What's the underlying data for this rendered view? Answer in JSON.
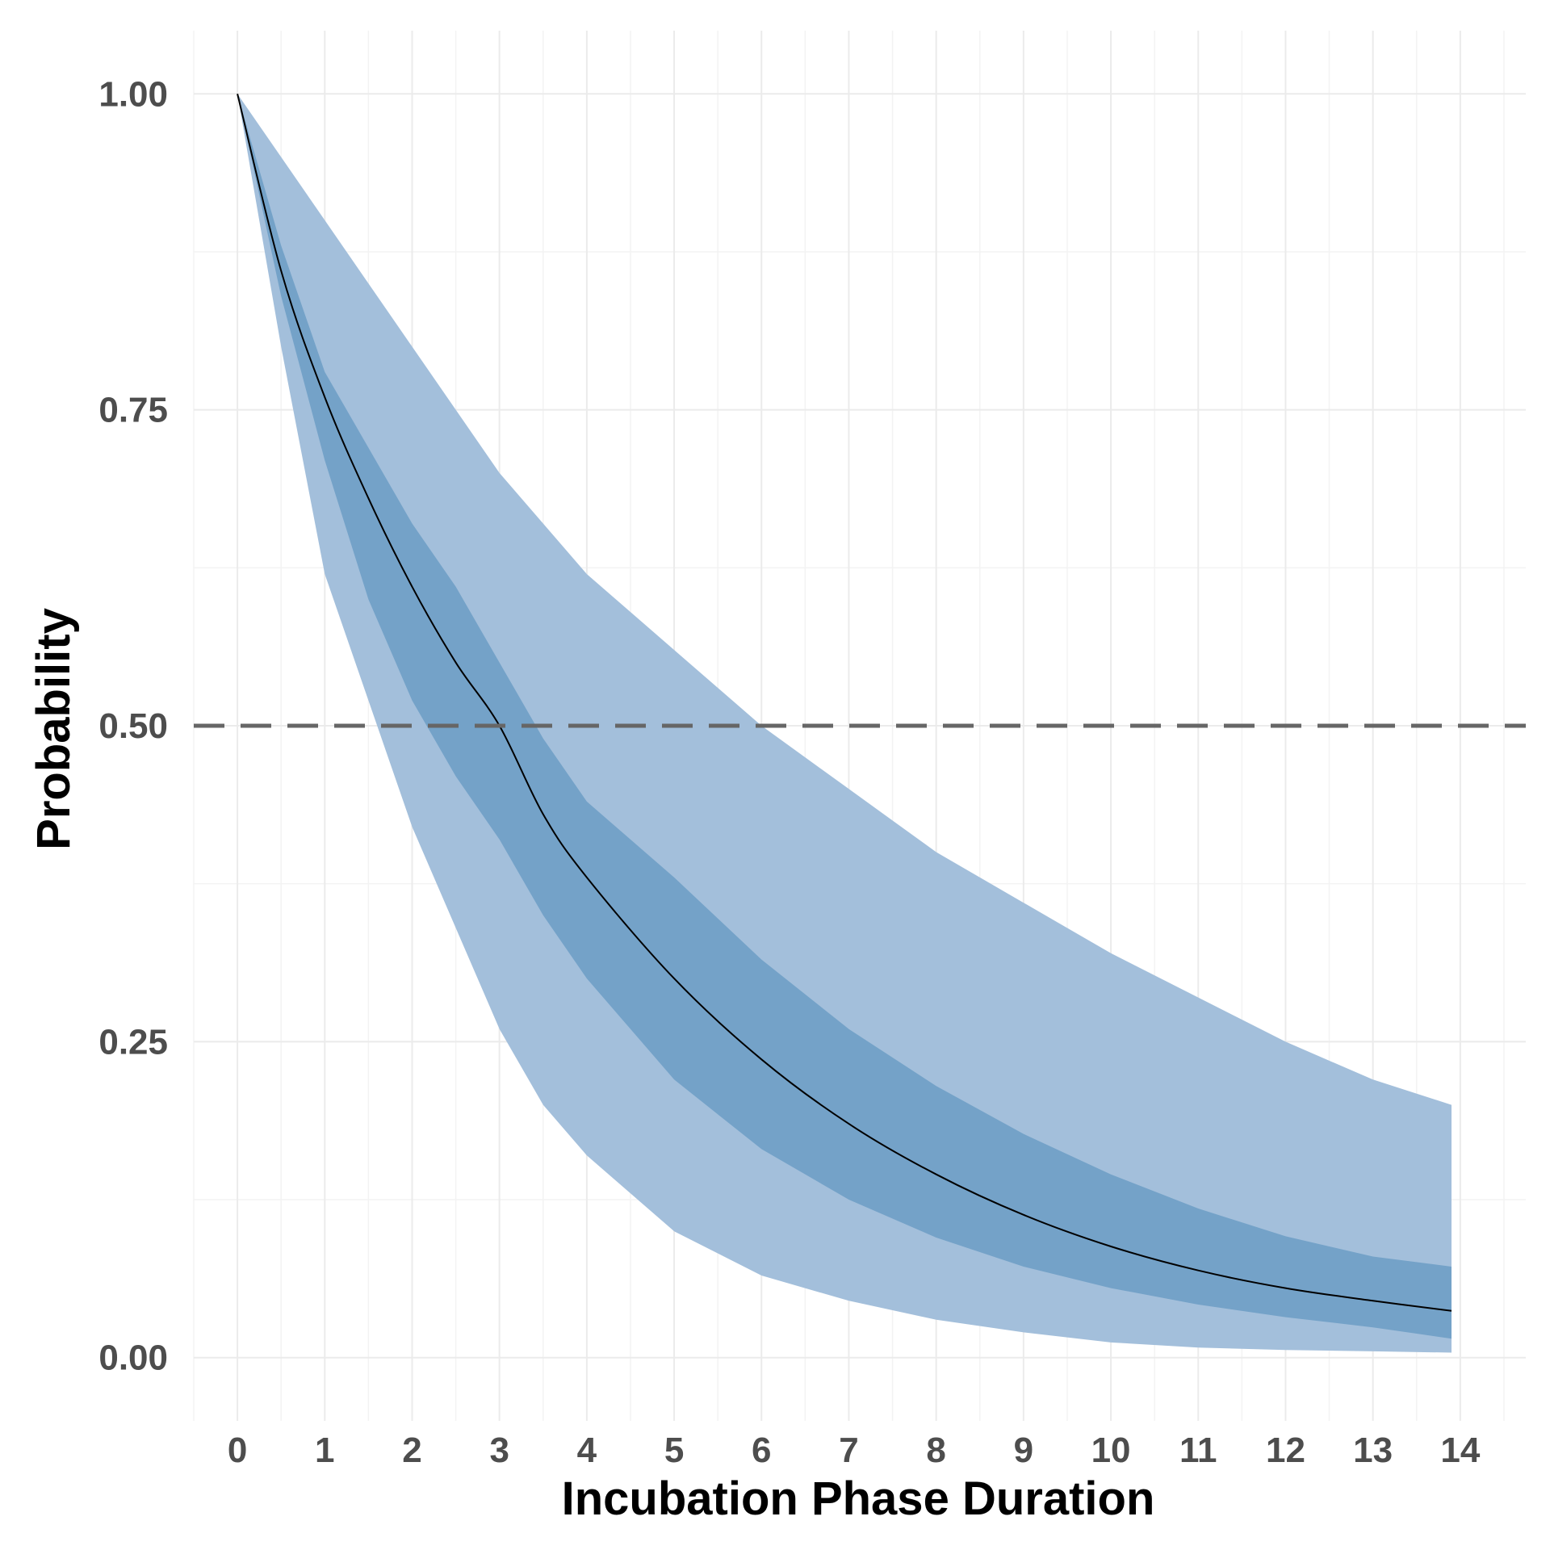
{
  "chart_data": {
    "type": "line",
    "title": "",
    "xlabel": "Incubation Phase Duration",
    "ylabel": "Probability",
    "xlim": [
      -0.5,
      14.75
    ],
    "ylim": [
      -0.05,
      1.05
    ],
    "x_ticks": [
      0,
      1,
      2,
      3,
      4,
      5,
      6,
      7,
      8,
      9,
      10,
      11,
      12,
      13,
      14
    ],
    "x_tick_labels": [
      "0",
      "1",
      "2",
      "3",
      "4",
      "5",
      "6",
      "7",
      "8",
      "9",
      "10",
      "11",
      "12",
      "13",
      "14"
    ],
    "y_ticks": [
      0,
      0.25,
      0.5,
      0.75,
      1.0
    ],
    "y_tick_labels": [
      "0.00",
      "0.25",
      "0.50",
      "0.75",
      "1.00"
    ],
    "grid": true,
    "reference_line": {
      "y": 0.5,
      "style": "dashed",
      "color": "#666666"
    },
    "colors": {
      "outer_band": "#a3bfdb",
      "inner_band": "#74a2c8",
      "line": "#000000",
      "grid": "#ebebeb"
    },
    "x": [
      0,
      0.5,
      1,
      1.5,
      2,
      2.5,
      3,
      3.5,
      4,
      5,
      6,
      7,
      8,
      9,
      10,
      11,
      12,
      13,
      13.9
    ],
    "series": [
      {
        "values": [
          1.0,
          0.86,
          0.76,
          0.68,
          0.61,
          0.55,
          0.5,
          0.43,
          0.38,
          0.3,
          0.236,
          0.185,
          0.145,
          0.113,
          0.088,
          0.069,
          0.055,
          0.045,
          0.037
        ]
      }
    ],
    "inner_band": {
      "upper": [
        1.0,
        0.88,
        0.78,
        0.72,
        0.66,
        0.61,
        0.55,
        0.49,
        0.44,
        0.38,
        0.315,
        0.26,
        0.215,
        0.177,
        0.145,
        0.118,
        0.096,
        0.08,
        0.072
      ],
      "lower": [
        1.0,
        0.84,
        0.71,
        0.6,
        0.52,
        0.46,
        0.41,
        0.35,
        0.3,
        0.22,
        0.165,
        0.125,
        0.095,
        0.072,
        0.055,
        0.042,
        0.032,
        0.024,
        0.015
      ]
    },
    "outer_band": {
      "upper": [
        1.0,
        0.95,
        0.9,
        0.85,
        0.8,
        0.75,
        0.7,
        0.66,
        0.62,
        0.56,
        0.5,
        0.45,
        0.4,
        0.36,
        0.32,
        0.285,
        0.25,
        0.22,
        0.2
      ],
      "lower": [
        1.0,
        0.8,
        0.62,
        0.52,
        0.42,
        0.34,
        0.26,
        0.2,
        0.16,
        0.1,
        0.065,
        0.045,
        0.03,
        0.02,
        0.012,
        0.008,
        0.006,
        0.005,
        0.004
      ]
    }
  }
}
